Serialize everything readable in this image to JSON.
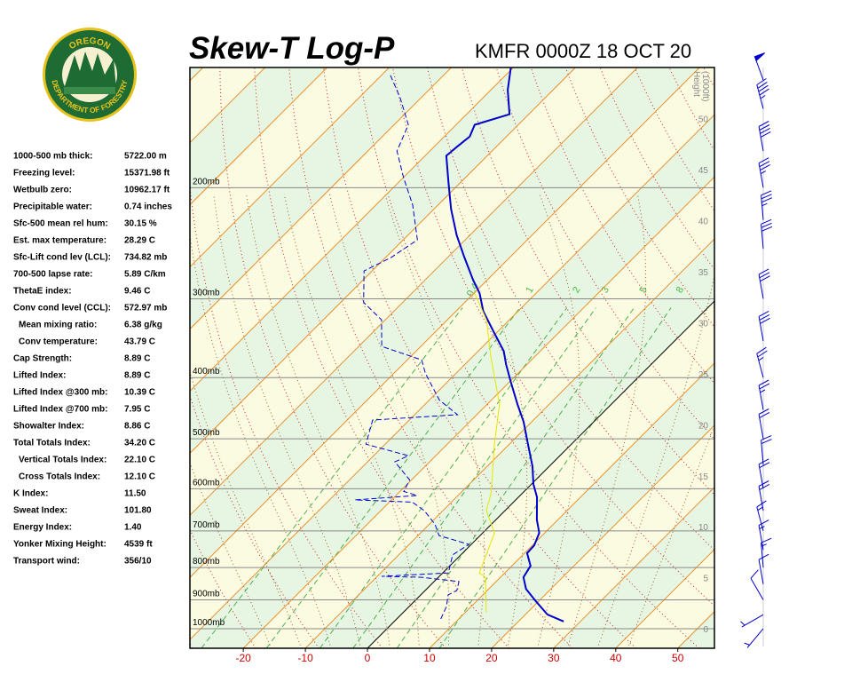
{
  "logo": {
    "top": "OREGON",
    "bottom": "DEPARTMENT OF FORESTRY"
  },
  "indices": [
    {
      "label": "1000-500 mb thick:",
      "value": "5722.00 m"
    },
    {
      "label": "Freezing level:",
      "value": "15371.98 ft"
    },
    {
      "label": "Wetbulb zero:",
      "value": "10962.17 ft"
    },
    {
      "label": "Precipitable water:",
      "value": "0.74 inches"
    },
    {
      "label": "Sfc-500 mean rel hum:",
      "value": "30.15 %"
    },
    {
      "label": "Est. max temperature:",
      "value": "28.29 C"
    },
    {
      "label": "Sfc-Lift cond lev (LCL):",
      "value": "734.82 mb"
    },
    {
      "label": "700-500 lapse rate:",
      "value": "5.89 C/km"
    },
    {
      "label": "ThetaE index:",
      "value": "9.46 C"
    },
    {
      "label": "Conv cond level (CCL):",
      "value": "572.97 mb"
    },
    {
      "label": "Mean mixing ratio:",
      "value": "6.38 g/kg",
      "indent": true
    },
    {
      "label": "Conv temperature:",
      "value": "43.79 C",
      "indent": true
    },
    {
      "label": "Cap Strength:",
      "value": "8.89 C"
    },
    {
      "label": "Lifted Index:",
      "value": "8.89 C"
    },
    {
      "label": "Lifted Index @300 mb:",
      "value": "10.39 C"
    },
    {
      "label": "Lifted Index @700 mb:",
      "value": "7.95 C"
    },
    {
      "label": "Showalter Index:",
      "value": "8.86 C"
    },
    {
      "label": "Total Totals Index:",
      "value": "34.20 C"
    },
    {
      "label": "Vertical Totals Index:",
      "value": "22.10 C",
      "indent": true
    },
    {
      "label": "Cross Totals Index:",
      "value": "12.10 C",
      "indent": true
    },
    {
      "label": "K Index:",
      "value": "11.50"
    },
    {
      "label": "Sweat Index:",
      "value": "101.80"
    },
    {
      "label": "Energy Index:",
      "value": "1.40"
    },
    {
      "label": "Yonker Mixing Height:",
      "value": "4539 ft"
    },
    {
      "label": "Transport wind:",
      "value": "356/10"
    }
  ],
  "chart_data": {
    "type": "skew-t",
    "title": "Skew-T Log-P",
    "subtitle": "KMFR 0000Z 18 OCT 20",
    "xlim": [
      -28.6,
      55.9
    ],
    "xticks": [
      -20,
      -10,
      0,
      10,
      20,
      30,
      40,
      50
    ],
    "xtick_color": "#cc0000",
    "ylim": [
      1074,
      129
    ],
    "log_y": true,
    "yticks": [
      {
        "value": 1000,
        "label": "1000mb"
      },
      {
        "value": 900,
        "label": "900mb"
      },
      {
        "value": 800,
        "label": "800mb"
      },
      {
        "value": 700,
        "label": "700mb"
      },
      {
        "value": 600,
        "label": "600mb"
      },
      {
        "value": 500,
        "label": "500mb"
      },
      {
        "value": 400,
        "label": "400mb"
      },
      {
        "value": 300,
        "label": "300mb"
      },
      {
        "value": 200,
        "label": "200mb"
      }
    ],
    "y2label": [
      "Height",
      "(1000ft)"
    ],
    "y2lim": [
      -1.9,
      55
    ],
    "y2ticks": [
      0,
      5,
      10,
      15,
      20,
      25,
      30,
      35,
      40,
      45,
      50
    ],
    "mixing_ratios": [
      0.4,
      1,
      2,
      3,
      5,
      8
    ],
    "series": [
      {
        "color": "#0000cc",
        "width": 2,
        "dashed": false,
        "pressure": [
          974,
          950,
          905,
          865,
          829,
          795,
          759,
          738,
          705,
          672,
          619,
          590,
          553,
          510,
          470,
          441,
          407,
          381,
          363,
          340,
          314,
          294,
          280,
          258,
          238,
          216,
          196,
          178,
          172,
          166,
          159,
          153,
          140,
          129
        ],
        "values": [
          27.3,
          23.6,
          19.6,
          16.0,
          13.7,
          13.0,
          10.4,
          10.3,
          9.1,
          6.6,
          3.0,
          0.3,
          -2.7,
          -7.0,
          -11.3,
          -15.1,
          -19.7,
          -23.4,
          -25.9,
          -30.3,
          -35.6,
          -39.1,
          -42.3,
          -47.3,
          -52.1,
          -57.3,
          -62.0,
          -66.6,
          -66.3,
          -65.9,
          -67.0,
          -63.1,
          -67.3,
          -70.4
        ]
      },
      {
        "color": "#0000cc",
        "width": 1,
        "dashed": true,
        "pressure": [
          965,
          922,
          884,
          870,
          842,
          829,
          826,
          816,
          764,
          735,
          712,
          683,
          650,
          630,
          625,
          615,
          606,
          581,
          544,
          532,
          510,
          467,
          458,
          434,
          394,
          375,
          357,
          324,
          304,
          271,
          258,
          242,
          213,
          193,
          175,
          159,
          144,
          132
        ],
        "values": [
          7.1,
          6.0,
          4.4,
          5.1,
          4.0,
          -2.7,
          -9.3,
          0.9,
          -1.3,
          -0.4,
          -6.6,
          -9.1,
          -13.0,
          -16.3,
          -25.9,
          -16.6,
          -19.4,
          -20.3,
          -25.6,
          -24.4,
          -33.1,
          -35.9,
          -23.1,
          -28.4,
          -34.9,
          -37.7,
          -46.3,
          -50.6,
          -56.3,
          -61.3,
          -59.1,
          -57.7,
          -64.1,
          -69.9,
          -75.3,
          -77.7,
          -83.4,
          -88.9
        ]
      },
      {
        "color": "#e6e600",
        "width": 1,
        "dashed": false,
        "pressure": [
          943,
          829,
          816,
          705,
          650,
          609,
          510,
          441,
          369,
          324,
          294
        ],
        "values": [
          13.4,
          7.6,
          5.9,
          1.9,
          -3.0,
          -5.1,
          -12.4,
          -18.0,
          -27.3,
          -33.7,
          -39.9
        ]
      }
    ],
    "wind": {
      "color": "#0000cc",
      "pressure": [
        1000,
        950,
        900,
        850,
        800,
        750,
        700,
        650,
        600,
        550,
        500,
        450,
        400,
        350,
        300,
        250,
        225,
        200,
        175,
        150,
        135
      ],
      "direction": [
        220,
        240,
        330,
        350,
        355,
        350,
        345,
        350,
        350,
        355,
        350,
        350,
        345,
        350,
        350,
        355,
        355,
        350,
        350,
        345,
        340
      ],
      "speed": [
        5,
        5,
        10,
        10,
        15,
        15,
        15,
        20,
        20,
        20,
        20,
        25,
        25,
        30,
        30,
        30,
        35,
        35,
        40,
        45,
        50
      ]
    }
  }
}
